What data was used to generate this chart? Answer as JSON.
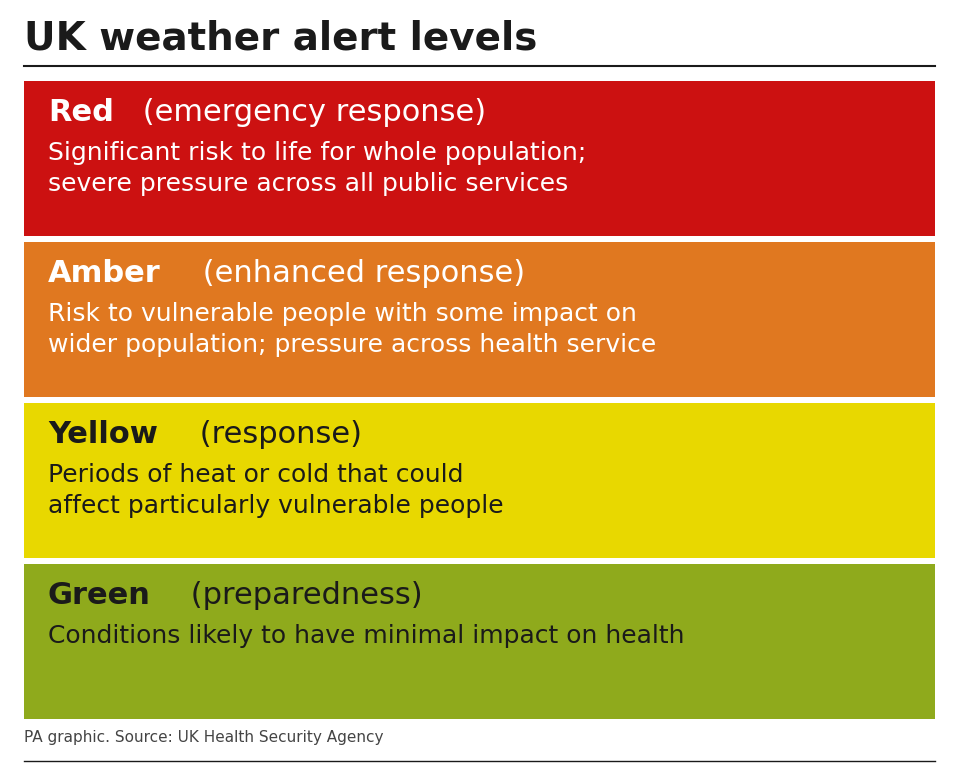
{
  "title": "UK weather alert levels",
  "source": "PA graphic. Source: UK Health Security Agency",
  "background_color": "#ffffff",
  "title_color": "#1a1a1a",
  "levels": [
    {
      "color": "#cc1111",
      "label": "Red",
      "label_suffix": " (emergency response)",
      "description": "Significant risk to life for whole population;\nsevere pressure across all public services",
      "text_color": "#ffffff"
    },
    {
      "color": "#e07820",
      "label": "Amber",
      "label_suffix": " (enhanced response)",
      "description": "Risk to vulnerable people with some impact on\nwider population; pressure across health service",
      "text_color": "#ffffff"
    },
    {
      "color": "#e8d800",
      "label": "Yellow",
      "label_suffix": " (response)",
      "description": "Periods of heat or cold that could\naffect particularly vulnerable people",
      "text_color": "#1a1a1a"
    },
    {
      "color": "#8faa1c",
      "label": "Green",
      "label_suffix": " (preparedness)",
      "description": "Conditions likely to have minimal impact on health",
      "text_color": "#1a1a1a"
    }
  ]
}
